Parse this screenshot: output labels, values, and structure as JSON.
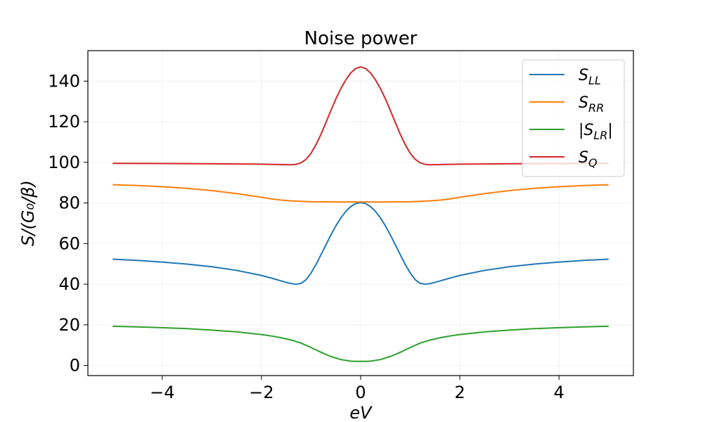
{
  "chart_data": {
    "type": "line",
    "title": "Noise power",
    "xlabel": "eV",
    "ylabel": "S/(G₀/β)",
    "xlim": [
      -5.5,
      5.5
    ],
    "ylim": [
      -5,
      155
    ],
    "xticks": [
      -4,
      -2,
      0,
      2,
      4
    ],
    "xtick_labels": [
      "−4",
      "−2",
      "0",
      "2",
      "4"
    ],
    "yticks": [
      0,
      20,
      40,
      60,
      80,
      100,
      120,
      140
    ],
    "ytick_labels": [
      "0",
      "20",
      "40",
      "60",
      "80",
      "100",
      "120",
      "140"
    ],
    "grid": true,
    "legend_position": "top-right",
    "series": [
      {
        "name": "S_LL",
        "color": "#1f77b4",
        "x": [
          -5,
          -4.5,
          -4,
          -3.5,
          -3,
          -2.5,
          -2,
          -1.8,
          -1.6,
          -1.5,
          -1.4,
          -1.3,
          -1.2,
          -1.1,
          -1.0,
          -0.9,
          -0.8,
          -0.7,
          -0.6,
          -0.5,
          -0.4,
          -0.3,
          -0.2,
          -0.1,
          0,
          0.1,
          0.2,
          0.3,
          0.4,
          0.5,
          0.6,
          0.7,
          0.8,
          0.9,
          1.0,
          1.1,
          1.2,
          1.3,
          1.4,
          1.5,
          1.6,
          1.8,
          2,
          2.5,
          3,
          3.5,
          4,
          4.5,
          5
        ],
        "y": [
          52.3,
          51.7,
          50.9,
          49.9,
          48.6,
          46.8,
          44.3,
          43.0,
          41.6,
          40.9,
          40.3,
          40.0,
          40.4,
          42.2,
          45.5,
          49.7,
          54.5,
          59.4,
          64.2,
          68.7,
          72.6,
          75.8,
          78.2,
          79.7,
          80.2,
          79.7,
          78.2,
          75.8,
          72.6,
          68.7,
          64.2,
          59.4,
          54.5,
          49.7,
          45.5,
          42.2,
          40.4,
          40.0,
          40.3,
          40.9,
          41.6,
          43.0,
          44.3,
          46.8,
          48.6,
          49.9,
          50.9,
          51.7,
          52.3
        ]
      },
      {
        "name": "S_RR",
        "color": "#ff7f0e",
        "x": [
          -5,
          -4.5,
          -4,
          -3.5,
          -3,
          -2.5,
          -2,
          -1.8,
          -1.6,
          -1.4,
          -1.2,
          -1.0,
          -0.5,
          0,
          0.5,
          1.0,
          1.2,
          1.4,
          1.6,
          1.8,
          2,
          2.5,
          3,
          3.5,
          4,
          4.5,
          5
        ],
        "y": [
          89.0,
          88.6,
          88.0,
          87.2,
          86.1,
          84.6,
          82.8,
          82.0,
          81.4,
          81.0,
          80.8,
          80.6,
          80.5,
          80.5,
          80.5,
          80.6,
          80.8,
          81.0,
          81.4,
          82.0,
          82.8,
          84.6,
          86.1,
          87.2,
          88.0,
          88.6,
          89.0
        ]
      },
      {
        "name": "|S_LR|",
        "color": "#2ca02c",
        "x": [
          -5,
          -4.5,
          -4,
          -3.5,
          -3,
          -2.5,
          -2,
          -1.8,
          -1.6,
          -1.4,
          -1.2,
          -1.0,
          -0.8,
          -0.6,
          -0.4,
          -0.2,
          -0.1,
          0,
          0.1,
          0.2,
          0.4,
          0.6,
          0.8,
          1.0,
          1.2,
          1.4,
          1.6,
          1.8,
          2,
          2.5,
          3,
          3.5,
          4,
          4.5,
          5
        ],
        "y": [
          19.3,
          19.0,
          18.6,
          18.1,
          17.4,
          16.5,
          15.2,
          14.5,
          13.6,
          12.5,
          11.0,
          8.8,
          6.5,
          4.4,
          2.9,
          2.1,
          2.0,
          2.0,
          2.0,
          2.1,
          2.9,
          4.4,
          6.5,
          8.8,
          11.0,
          12.5,
          13.6,
          14.5,
          15.2,
          16.5,
          17.4,
          18.1,
          18.6,
          19.0,
          19.3
        ]
      },
      {
        "name": "S_Q",
        "color": "#d62728",
        "x": [
          -5,
          -4,
          -3,
          -2,
          -1.6,
          -1.4,
          -1.3,
          -1.2,
          -1.1,
          -1.0,
          -0.9,
          -0.8,
          -0.7,
          -0.6,
          -0.5,
          -0.4,
          -0.3,
          -0.2,
          -0.1,
          0,
          0.1,
          0.2,
          0.3,
          0.4,
          0.5,
          0.6,
          0.7,
          0.8,
          0.9,
          1.0,
          1.1,
          1.2,
          1.3,
          1.4,
          1.6,
          2,
          3,
          4,
          5
        ],
        "y": [
          99.5,
          99.4,
          99.3,
          99.1,
          98.9,
          98.8,
          99.0,
          99.8,
          101.5,
          104.5,
          108.7,
          113.8,
          119.6,
          125.5,
          131.2,
          136.3,
          140.6,
          144.0,
          146.2,
          147.0,
          146.2,
          144.0,
          140.6,
          136.3,
          131.2,
          125.5,
          119.6,
          113.8,
          108.7,
          104.5,
          101.5,
          99.8,
          99.0,
          98.8,
          98.9,
          99.1,
          99.3,
          99.4,
          99.5
        ]
      }
    ],
    "legend_entries": [
      {
        "main": "S",
        "sub": "LL",
        "prefix": "",
        "suffix": "",
        "color": "#1f77b4"
      },
      {
        "main": "S",
        "sub": "RR",
        "prefix": "",
        "suffix": "",
        "color": "#ff7f0e"
      },
      {
        "main": "S",
        "sub": "LR",
        "prefix": "|",
        "suffix": "|",
        "color": "#2ca02c"
      },
      {
        "main": "S",
        "sub": "Q",
        "prefix": "",
        "suffix": "",
        "color": "#d62728"
      }
    ]
  }
}
